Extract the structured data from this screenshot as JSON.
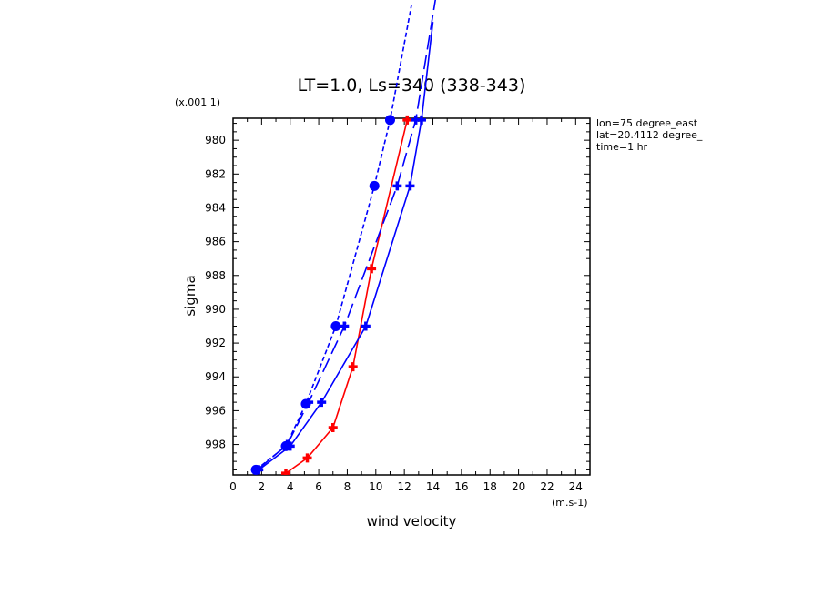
{
  "chart_data": {
    "type": "line",
    "title": "LT=1.0, Ls=340 (338-343)",
    "xlabel": "wind velocity",
    "ylabel": "sigma",
    "x_unit": "(m.s-1)",
    "y_unit": "(x.001 1)",
    "xlim": [
      0,
      25
    ],
    "ylim": [
      999.8,
      978.7
    ],
    "x_ticks": [
      "0",
      "2",
      "4",
      "6",
      "8",
      "10",
      "12",
      "14",
      "16",
      "18",
      "20",
      "22",
      "24"
    ],
    "y_ticks": [
      "980",
      "982",
      "984",
      "986",
      "988",
      "990",
      "992",
      "994",
      "996",
      "998"
    ],
    "info": [
      "lon=75 degree_east",
      "lat=20.4112 degree_",
      "time=1 hr"
    ],
    "grid": false,
    "series": [
      {
        "style": "solid",
        "marker": "plus",
        "color": "#ff0000",
        "points": [
          [
            3.7,
            999.7
          ],
          [
            5.2,
            998.8
          ],
          [
            7.0,
            997.0
          ],
          [
            8.4,
            993.4
          ],
          [
            9.7,
            987.6
          ],
          [
            12.2,
            978.8
          ]
        ]
      },
      {
        "style": "solid",
        "marker": "plus",
        "color": "#0000ff",
        "points": [
          [
            1.8,
            999.5
          ],
          [
            4.0,
            998.1
          ],
          [
            6.2,
            995.5
          ],
          [
            9.3,
            991.0
          ],
          [
            12.4,
            982.7
          ],
          [
            13.2,
            978.8
          ],
          [
            14.0,
            973.0
          ]
        ]
      },
      {
        "style": "longdash",
        "marker": "plus",
        "color": "#0000ff",
        "points": [
          [
            1.7,
            999.5
          ],
          [
            3.8,
            998.0
          ],
          [
            5.3,
            995.5
          ],
          [
            7.8,
            991.0
          ],
          [
            11.5,
            982.7
          ],
          [
            12.8,
            978.8
          ],
          [
            14.5,
            970.0
          ]
        ]
      },
      {
        "style": "dash",
        "marker": "circle",
        "color": "#0000ff",
        "points": [
          [
            1.6,
            999.5
          ],
          [
            3.7,
            998.1
          ],
          [
            5.1,
            995.6
          ],
          [
            7.2,
            991.0
          ],
          [
            9.9,
            982.7
          ],
          [
            11.0,
            978.8
          ],
          [
            12.5,
            972.0
          ]
        ]
      }
    ]
  }
}
